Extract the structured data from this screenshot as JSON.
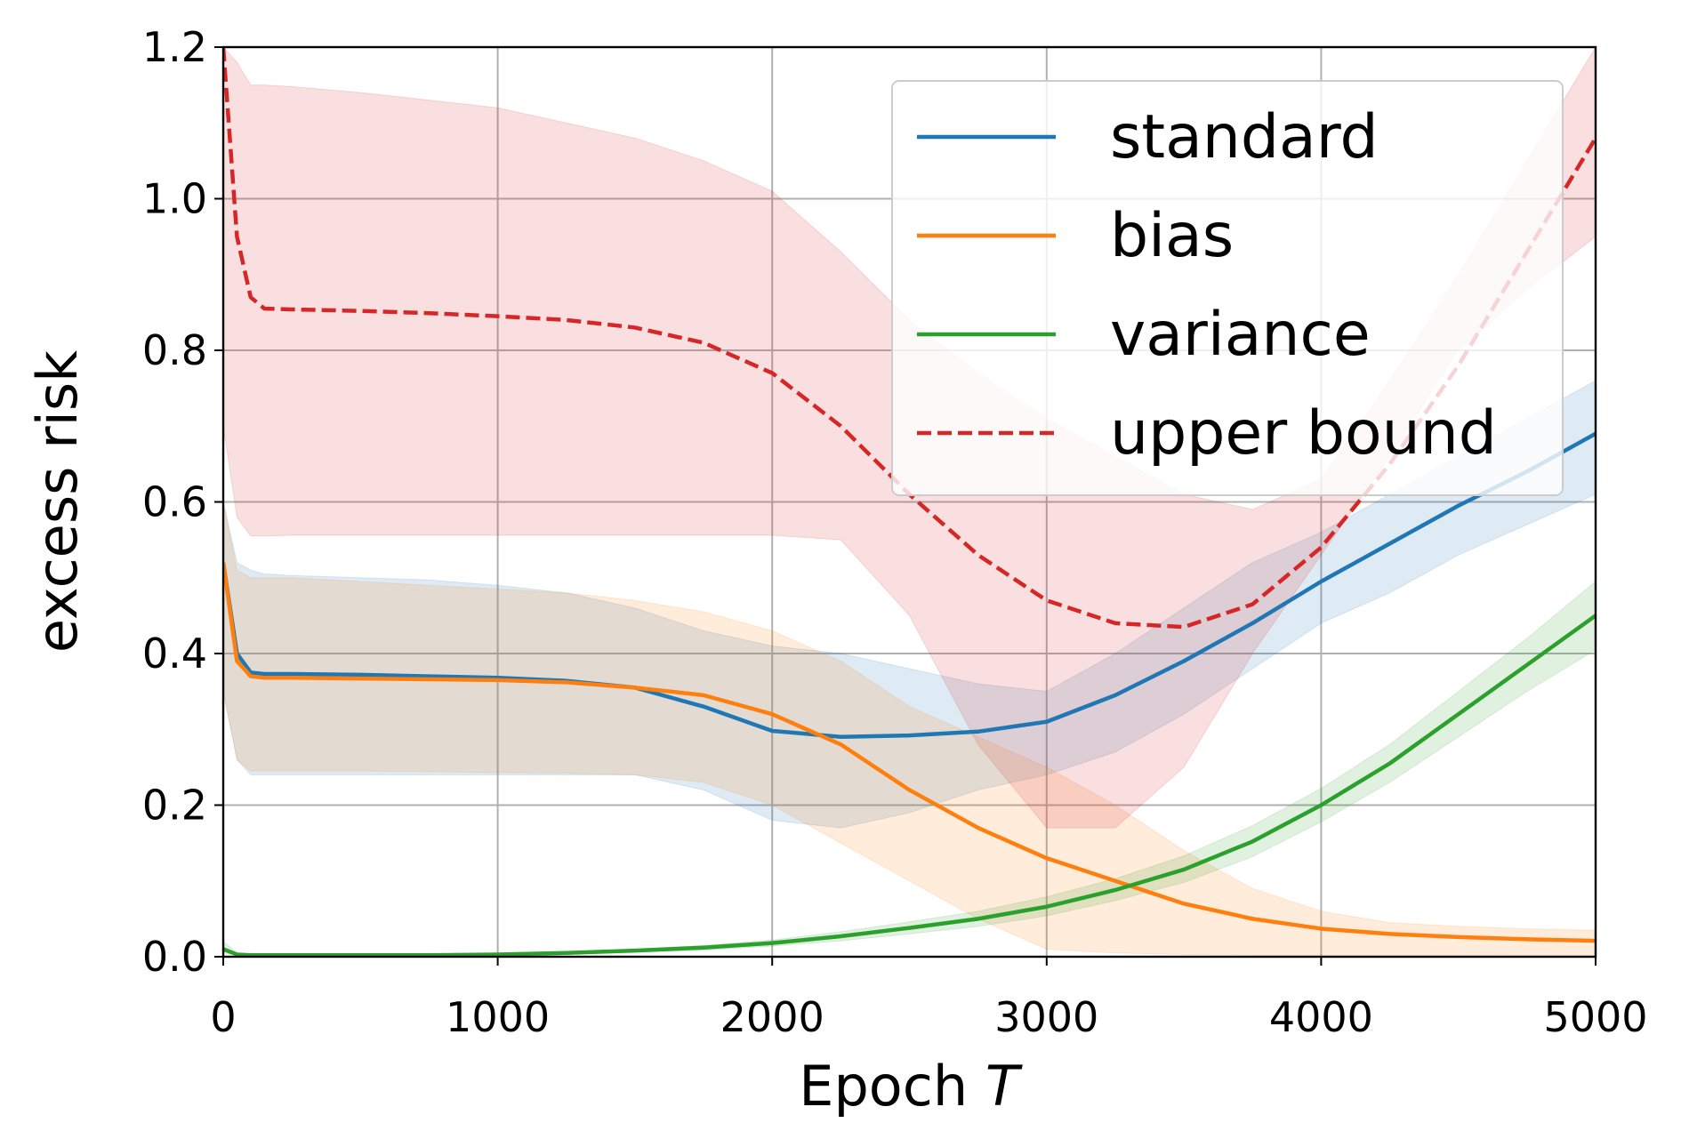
{
  "chart_data": {
    "type": "line",
    "xlabel": "Epoch",
    "xlabel_symbol": "T",
    "ylabel": "excess risk",
    "xlim": [
      0,
      5000
    ],
    "ylim": [
      0,
      1.2
    ],
    "xticks": [
      0,
      1000,
      2000,
      3000,
      4000,
      5000
    ],
    "yticks": [
      {
        "value": 0,
        "label": "0.0"
      },
      0.2,
      0.4,
      0.6,
      0.8,
      {
        "value": 1,
        "label": "1.0"
      },
      1.2
    ],
    "grid": true,
    "legend": "upper right",
    "x": [
      0,
      50,
      100,
      150,
      250,
      500,
      750,
      1000,
      1250,
      1500,
      1750,
      2000,
      2250,
      2500,
      2750,
      3000,
      3250,
      3500,
      3750,
      4000,
      4250,
      4500,
      4750,
      5000
    ],
    "series": [
      {
        "name": "standard",
        "color": "#1f77b4",
        "dash": false,
        "values": [
          0.52,
          0.4,
          0.375,
          0.373,
          0.373,
          0.372,
          0.37,
          0.368,
          0.364,
          0.355,
          0.33,
          0.298,
          0.29,
          0.292,
          0.297,
          0.31,
          0.345,
          0.39,
          0.44,
          0.495,
          0.545,
          0.595,
          0.64,
          0.69
        ],
        "lower": [
          0.35,
          0.26,
          0.24,
          0.24,
          0.24,
          0.24,
          0.24,
          0.24,
          0.24,
          0.24,
          0.22,
          0.18,
          0.17,
          0.19,
          0.22,
          0.24,
          0.27,
          0.32,
          0.38,
          0.44,
          0.48,
          0.53,
          0.57,
          0.61
        ],
        "upper": [
          0.6,
          0.52,
          0.51,
          0.505,
          0.503,
          0.5,
          0.497,
          0.49,
          0.48,
          0.46,
          0.43,
          0.41,
          0.4,
          0.38,
          0.36,
          0.35,
          0.4,
          0.46,
          0.52,
          0.56,
          0.61,
          0.66,
          0.71,
          0.76
        ]
      },
      {
        "name": "bias",
        "color": "#ff7f0e",
        "dash": false,
        "values": [
          0.52,
          0.39,
          0.37,
          0.368,
          0.368,
          0.367,
          0.366,
          0.365,
          0.362,
          0.355,
          0.345,
          0.32,
          0.28,
          0.22,
          0.17,
          0.13,
          0.1,
          0.07,
          0.05,
          0.037,
          0.03,
          0.026,
          0.023,
          0.021
        ],
        "lower": [
          0.35,
          0.26,
          0.245,
          0.245,
          0.245,
          0.245,
          0.244,
          0.243,
          0.242,
          0.24,
          0.23,
          0.2,
          0.15,
          0.1,
          0.05,
          0.01,
          0.005,
          0.003,
          0.002,
          0.002,
          0.002,
          0.002,
          0.002,
          0.002
        ],
        "upper": [
          0.6,
          0.51,
          0.5,
          0.5,
          0.5,
          0.495,
          0.49,
          0.485,
          0.48,
          0.47,
          0.455,
          0.43,
          0.39,
          0.33,
          0.29,
          0.25,
          0.2,
          0.14,
          0.09,
          0.06,
          0.045,
          0.04,
          0.037,
          0.035
        ]
      },
      {
        "name": "variance",
        "color": "#2ca02c",
        "dash": false,
        "values": [
          0.01,
          0.003,
          0.002,
          0.002,
          0.002,
          0.002,
          0.002,
          0.003,
          0.005,
          0.008,
          0.012,
          0.018,
          0.027,
          0.038,
          0.05,
          0.066,
          0.088,
          0.115,
          0.152,
          0.2,
          0.255,
          0.32,
          0.385,
          0.45
        ],
        "lower": [
          0.005,
          0.002,
          0.001,
          0.001,
          0.001,
          0.001,
          0.001,
          0.002,
          0.004,
          0.006,
          0.009,
          0.014,
          0.021,
          0.03,
          0.04,
          0.054,
          0.074,
          0.098,
          0.132,
          0.178,
          0.23,
          0.29,
          0.35,
          0.405
        ],
        "upper": [
          0.02,
          0.005,
          0.003,
          0.003,
          0.003,
          0.003,
          0.003,
          0.004,
          0.006,
          0.01,
          0.015,
          0.022,
          0.033,
          0.046,
          0.06,
          0.079,
          0.103,
          0.133,
          0.173,
          0.222,
          0.28,
          0.35,
          0.42,
          0.495
        ]
      },
      {
        "name": "upper bound",
        "color": "#d62728",
        "dash": true,
        "values": [
          1.2,
          0.95,
          0.87,
          0.855,
          0.854,
          0.852,
          0.849,
          0.845,
          0.84,
          0.83,
          0.81,
          0.77,
          0.7,
          0.61,
          0.53,
          0.47,
          0.44,
          0.435,
          0.465,
          0.54,
          0.65,
          0.78,
          0.93,
          1.08
        ],
        "lower": [
          0.7,
          0.58,
          0.555,
          0.555,
          0.556,
          0.556,
          0.556,
          0.556,
          0.556,
          0.556,
          0.556,
          0.556,
          0.55,
          0.45,
          0.28,
          0.17,
          0.17,
          0.25,
          0.4,
          0.53,
          0.66,
          0.8,
          0.88,
          0.95
        ],
        "upper": [
          1.2,
          1.18,
          1.15,
          1.15,
          1.148,
          1.14,
          1.13,
          1.12,
          1.1,
          1.08,
          1.05,
          1.01,
          0.93,
          0.84,
          0.77,
          0.71,
          0.66,
          0.61,
          0.59,
          0.63,
          0.76,
          0.9,
          1.05,
          1.2
        ]
      }
    ]
  }
}
